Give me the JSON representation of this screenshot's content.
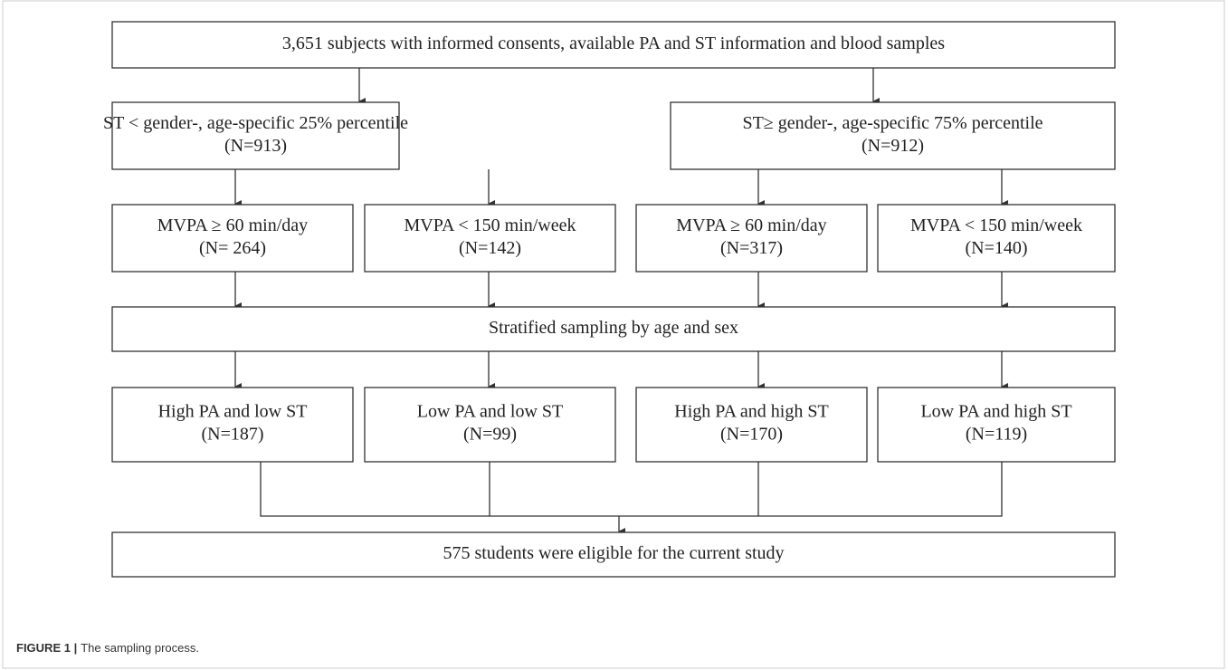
{
  "nodes": [
    {
      "lines": [
        "3,651 subjects with informed consents, available PA and ST information and blood samples"
      ]
    },
    {
      "lines": [
        "ST < gender-, age-specific 25% percentile",
        "(N=913)"
      ]
    },
    {
      "lines": [
        "ST≥ gender-, age-specific 75% percentile",
        "(N=912)"
      ]
    },
    {
      "lines": [
        "MVPA ≥ 60 min/day",
        "(N= 264)"
      ]
    },
    {
      "lines": [
        "MVPA < 150 min/week",
        "(N=142)"
      ]
    },
    {
      "lines": [
        "MVPA ≥ 60 min/day",
        "(N=317)"
      ]
    },
    {
      "lines": [
        "MVPA < 150 min/week",
        "(N=140)"
      ]
    },
    {
      "lines": [
        "Stratified sampling by age and sex"
      ]
    },
    {
      "lines": [
        "High PA and low ST",
        "(N=187)"
      ]
    },
    {
      "lines": [
        "Low PA and low ST",
        "(N=99)"
      ]
    },
    {
      "lines": [
        "High PA and high ST",
        "(N=170)"
      ]
    },
    {
      "lines": [
        "Low PA and high ST",
        "(N=119)"
      ]
    },
    {
      "lines": [
        "575 students were eligible  for the current study"
      ]
    }
  ],
  "caption": {
    "label": "FIGURE 1 |",
    "text": "The sampling process."
  }
}
